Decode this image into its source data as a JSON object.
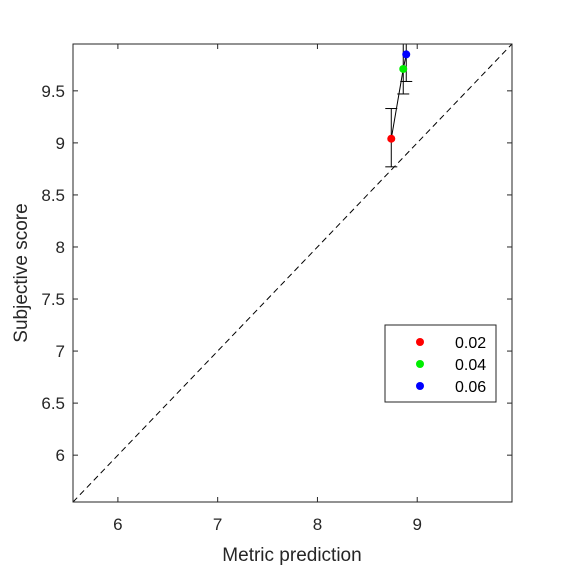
{
  "chart_data": {
    "type": "scatter",
    "title": "",
    "xlabel": "Metric prediction",
    "ylabel": "Subjective score",
    "xlim": [
      5.55,
      9.95
    ],
    "ylim": [
      5.55,
      9.95
    ],
    "xticks": [
      6,
      7,
      8,
      9
    ],
    "yticks": [
      6,
      6.5,
      7,
      7.5,
      8,
      8.5,
      9,
      9.5
    ],
    "xtick_labels": [
      "6",
      "7",
      "8",
      "9"
    ],
    "ytick_labels": [
      "6",
      "6.5",
      "7",
      "7.5",
      "8",
      "8.5",
      "9",
      "9.5"
    ],
    "grid": false,
    "reference_line": "y = x (dashed)",
    "connecting_line": true,
    "legend_position": "lower-right",
    "series": [
      {
        "name": "0.02",
        "color": "#ff0000",
        "x": 8.74,
        "y": 9.04,
        "ylow": 8.77,
        "yhigh": 9.33
      },
      {
        "name": "0.04",
        "color": "#00ee00",
        "x": 8.86,
        "y": 9.71,
        "ylow": 9.47,
        "yhigh": 9.95
      },
      {
        "name": "0.06",
        "color": "#0000ff",
        "x": 8.89,
        "y": 9.85,
        "ylow": 9.59,
        "yhigh": 9.95
      }
    ]
  }
}
